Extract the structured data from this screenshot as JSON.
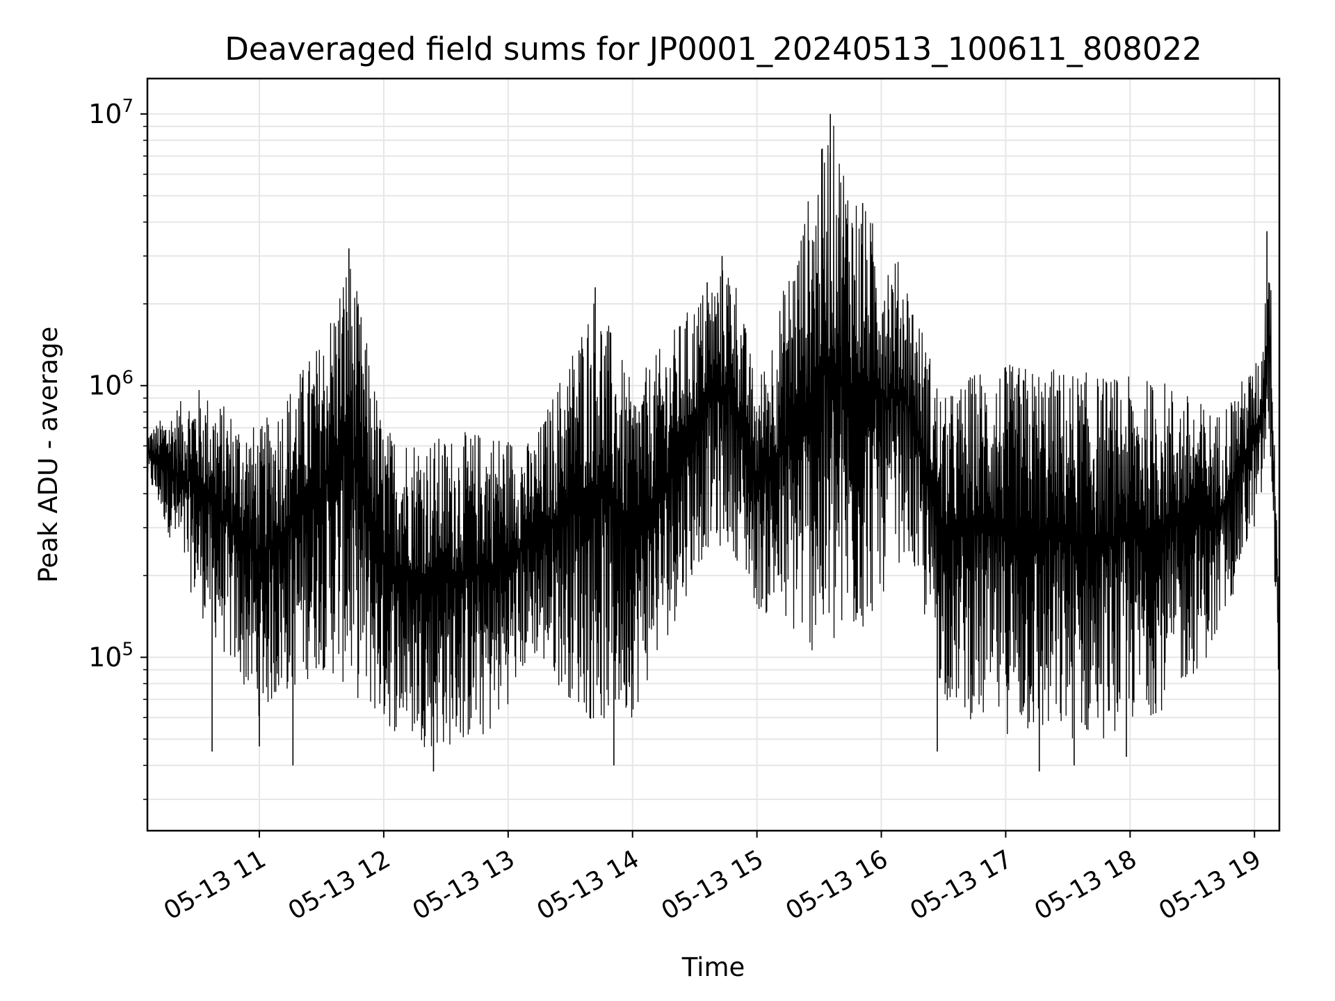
{
  "chart_data": {
    "type": "line",
    "title": "Deaveraged field sums for JP0001_20240513_100611_808022",
    "xlabel": "Time",
    "ylabel": "Peak ADU - average",
    "yscale": "log",
    "ylim": [
      23000,
      13500000
    ],
    "xlim_hours": [
      10.1,
      19.2
    ],
    "grid": true,
    "line_color": "#000000",
    "x_ticks": [
      {
        "label": "05-13 11",
        "hour": 11
      },
      {
        "label": "05-13 12",
        "hour": 12
      },
      {
        "label": "05-13 13",
        "hour": 13
      },
      {
        "label": "05-13 14",
        "hour": 14
      },
      {
        "label": "05-13 15",
        "hour": 15
      },
      {
        "label": "05-13 16",
        "hour": 16
      },
      {
        "label": "05-13 17",
        "hour": 17
      },
      {
        "label": "05-13 18",
        "hour": 18
      },
      {
        "label": "05-13 19",
        "hour": 19
      }
    ],
    "y_ticks": [
      {
        "base": "10",
        "exp": "5",
        "value": 100000
      },
      {
        "base": "10",
        "exp": "6",
        "value": 1000000
      },
      {
        "base": "10",
        "exp": "7",
        "value": 10000000
      }
    ],
    "series": [
      {
        "x_hours": [
          10.1,
          10.5,
          11.0,
          11.5,
          11.72,
          12.0,
          12.4,
          12.85,
          13.2,
          13.7,
          14.0,
          14.6,
          14.8,
          15.0,
          15.59,
          15.85,
          16.2,
          16.5,
          16.8,
          17.3,
          17.8,
          18.3,
          18.7,
          19.05,
          19.12,
          19.2
        ],
        "y_upper": [
          680000,
          1000000,
          700000,
          1500000,
          3200000,
          700000,
          650000,
          700000,
          620000,
          2300000,
          1000000,
          2400000,
          3000000,
          1000000,
          10000000,
          4700000,
          2600000,
          900000,
          1200000,
          1200000,
          1100000,
          1050000,
          800000,
          1300000,
          3700000,
          160000
        ],
        "y_lower": [
          450000,
          150000,
          60000,
          90000,
          75000,
          55000,
          45000,
          50000,
          100000,
          55000,
          60000,
          250000,
          250000,
          150000,
          90000,
          120000,
          250000,
          70000,
          55000,
          48000,
          50000,
          65000,
          110000,
          350000,
          600000,
          70000
        ],
        "spikes": [
          {
            "x_hour": 10.62,
            "y": 45000
          },
          {
            "x_hour": 11.0,
            "y": 47000
          },
          {
            "x_hour": 11.27,
            "y": 40000
          },
          {
            "x_hour": 11.72,
            "y": 3200000
          },
          {
            "x_hour": 12.4,
            "y": 38000
          },
          {
            "x_hour": 13.7,
            "y": 2300000
          },
          {
            "x_hour": 13.85,
            "y": 40000
          },
          {
            "x_hour": 14.6,
            "y": 2400000
          },
          {
            "x_hour": 14.72,
            "y": 3000000
          },
          {
            "x_hour": 15.59,
            "y": 10000000
          },
          {
            "x_hour": 15.85,
            "y": 4700000
          },
          {
            "x_hour": 16.45,
            "y": 45000
          },
          {
            "x_hour": 17.27,
            "y": 38000
          },
          {
            "x_hour": 17.55,
            "y": 40000
          },
          {
            "x_hour": 17.97,
            "y": 43000
          },
          {
            "x_hour": 19.1,
            "y": 3700000
          }
        ]
      }
    ]
  }
}
